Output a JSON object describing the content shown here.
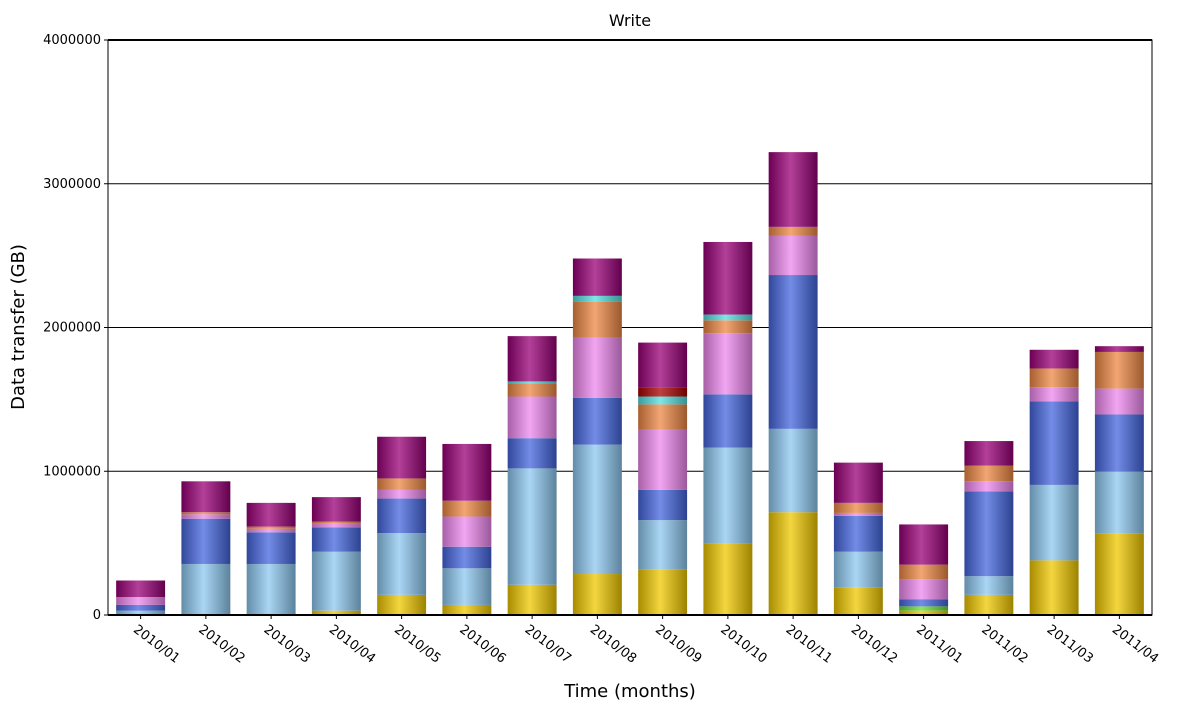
{
  "chart_data": {
    "type": "bar",
    "stacked": true,
    "title": "Write",
    "xlabel": "Time (months)",
    "ylabel": "Data transfer (GB)",
    "ylim": [
      0,
      4000000
    ],
    "yticks": [
      "0",
      "1000000",
      "2000000",
      "3000000",
      "4000000"
    ],
    "grid": true,
    "categories": [
      "2010/01",
      "2010/02",
      "2010/03",
      "2010/04",
      "2010/05",
      "2010/06",
      "2010/07",
      "2010/08",
      "2010/09",
      "2010/10",
      "2010/11",
      "2010/12",
      "2011/01",
      "2011/02",
      "2011/03",
      "2011/04"
    ],
    "series": [
      {
        "color": "#f0c800",
        "values": [
          0,
          0,
          0,
          30000,
          140000,
          70000,
          210000,
          285000,
          315000,
          495000,
          715000,
          190000,
          30000,
          140000,
          380000,
          565000
        ]
      },
      {
        "color": "#66dd33",
        "values": [
          0,
          0,
          0,
          0,
          0,
          0,
          0,
          0,
          0,
          0,
          0,
          0,
          30000,
          0,
          0,
          0
        ]
      },
      {
        "color": "#8ec8f0",
        "values": [
          30000,
          355000,
          355000,
          410000,
          430000,
          255000,
          810000,
          900000,
          345000,
          670000,
          580000,
          250000,
          0,
          130000,
          525000,
          435000
        ]
      },
      {
        "color": "#4466dd",
        "values": [
          40000,
          315000,
          220000,
          170000,
          240000,
          150000,
          210000,
          325000,
          210000,
          370000,
          1070000,
          250000,
          50000,
          590000,
          580000,
          395000
        ]
      },
      {
        "color": "#ee88ee",
        "values": [
          55000,
          30000,
          25000,
          25000,
          60000,
          210000,
          290000,
          420000,
          420000,
          425000,
          275000,
          20000,
          140000,
          70000,
          100000,
          180000
        ]
      },
      {
        "color": "#ee8844",
        "values": [
          0,
          15000,
          15000,
          15000,
          80000,
          110000,
          90000,
          250000,
          175000,
          90000,
          60000,
          70000,
          100000,
          110000,
          130000,
          255000
        ]
      },
      {
        "color": "#55dddd",
        "values": [
          0,
          0,
          0,
          0,
          0,
          0,
          15000,
          40000,
          55000,
          40000,
          0,
          0,
          0,
          0,
          0,
          0
        ]
      },
      {
        "color": "#aa0000",
        "values": [
          0,
          0,
          0,
          0,
          0,
          0,
          0,
          0,
          65000,
          0,
          0,
          0,
          0,
          0,
          0,
          0
        ]
      },
      {
        "color": "#990077",
        "values": [
          115000,
          215000,
          165000,
          170000,
          290000,
          395000,
          315000,
          260000,
          310000,
          505000,
          520000,
          280000,
          280000,
          170000,
          130000,
          40000
        ]
      }
    ]
  }
}
